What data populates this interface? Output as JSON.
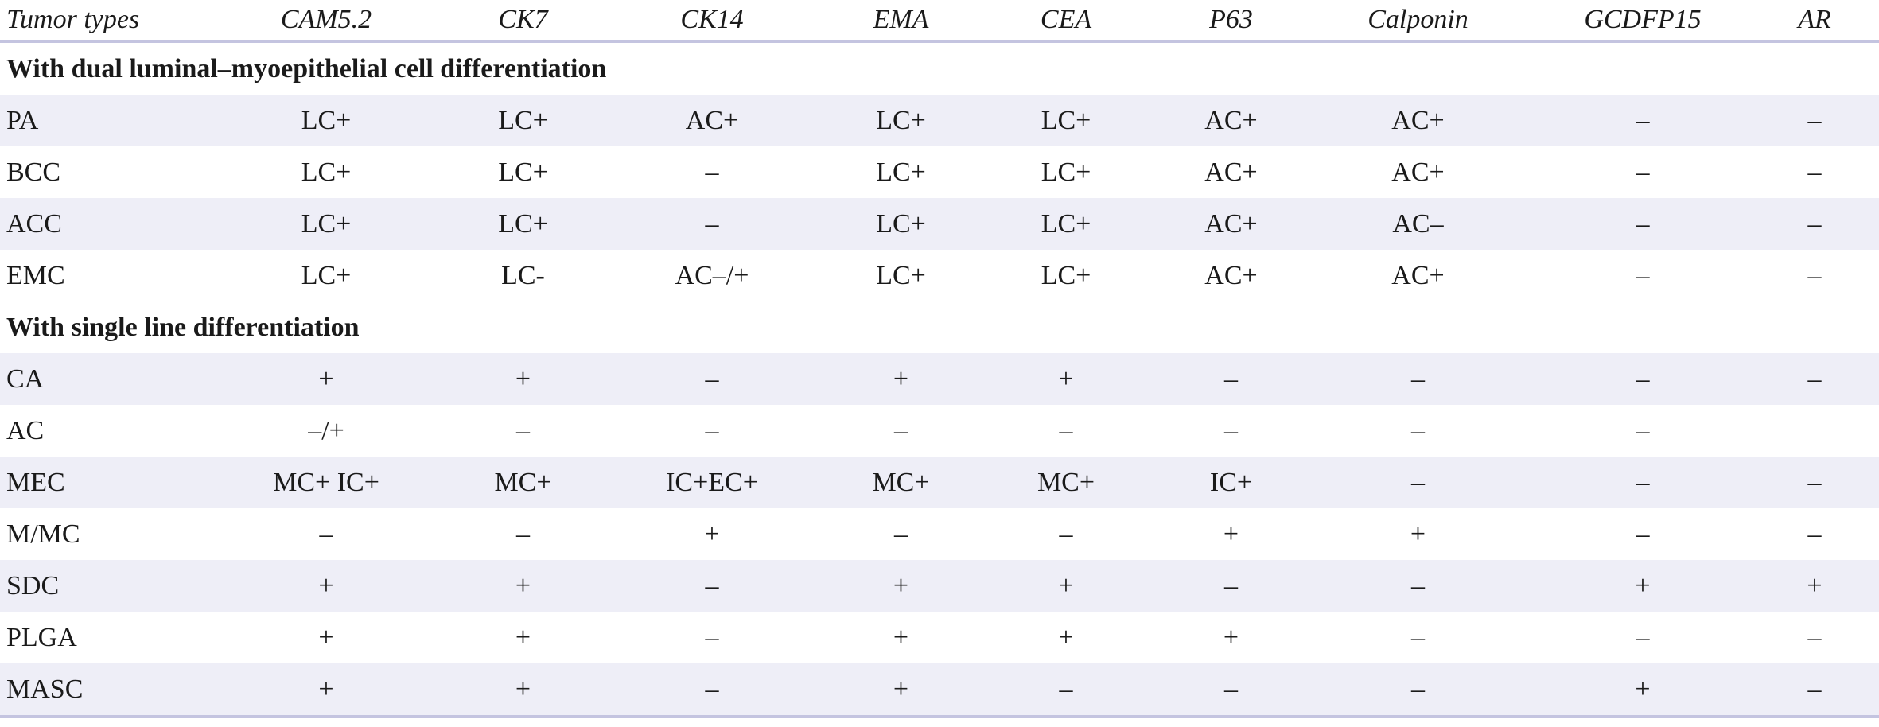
{
  "table": {
    "columns": [
      "Tumor types",
      "CAM5.2",
      "CK7",
      "CK14",
      "EMA",
      "CEA",
      "P63",
      "Calponin",
      "GCDFP15",
      "AR"
    ],
    "sections": [
      {
        "title": "With dual luminal–myoepithelial cell differentiation",
        "rows": [
          [
            "PA",
            "LC+",
            "LC+",
            "AC+",
            "LC+",
            "LC+",
            "AC+",
            "AC+",
            "–",
            "–"
          ],
          [
            "BCC",
            "LC+",
            "LC+",
            "–",
            "LC+",
            "LC+",
            "AC+",
            "AC+",
            "–",
            "–"
          ],
          [
            "ACC",
            "LC+",
            "LC+",
            "–",
            "LC+",
            "LC+",
            "AC+",
            "AC–",
            "–",
            "–"
          ],
          [
            "EMC",
            "LC+",
            "LC-",
            "AC–/+",
            "LC+",
            "LC+",
            "AC+",
            "AC+",
            "–",
            "–"
          ]
        ]
      },
      {
        "title": "With single line differentiation",
        "rows": [
          [
            "CA",
            "+",
            "+",
            "–",
            "+",
            "+",
            "–",
            "–",
            "–",
            "–"
          ],
          [
            "AC",
            "–/+",
            "–",
            "–",
            "–",
            "–",
            "–",
            "–",
            "–",
            null
          ],
          [
            "MEC",
            "MC+ IC+",
            "MC+",
            "IC+EC+",
            "MC+",
            "MC+",
            "IC+",
            "–",
            "–",
            "–"
          ],
          [
            "M/MC",
            "–",
            "–",
            "+",
            "–",
            "–",
            "+",
            "+",
            "–",
            "–"
          ],
          [
            "SDC",
            "+",
            "+",
            "–",
            "+",
            "+",
            "–",
            "–",
            "+",
            "+"
          ],
          [
            "PLGA",
            "+",
            "+",
            "–",
            "+",
            "+",
            "+",
            "–",
            "–",
            "–"
          ],
          [
            "MASC",
            "+",
            "+",
            "–",
            "+",
            "–",
            "–",
            "–",
            "+",
            "–"
          ]
        ]
      }
    ]
  }
}
